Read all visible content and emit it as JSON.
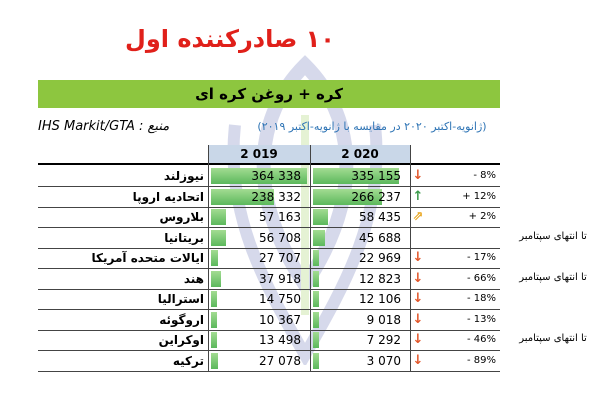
{
  "title": "۱۰ صادرکننده اول",
  "banner": "کره + روغن کره ای",
  "source": "IHS Markit/GTA : منبع",
  "subtitle": "(ژانویه-اکتبر ۲۰۲۰ در مقایسه با ژانویه-اکتبر ۲۰۱۹)",
  "headers": {
    "y2019": "2 019",
    "y2020": "2 020"
  },
  "colors": {
    "up": "#3a9a4a",
    "down": "#e2572b",
    "up_small": "#e8a318",
    "bar": "#5cb85c",
    "banner": "#8dc63f"
  },
  "rows": [
    {
      "country": "نیوزلند",
      "v2019": "364 338",
      "v2020": "335 155",
      "f2019": 1.0,
      "f2020": 0.92,
      "arrow": "down-arrow",
      "pct": "- 8%",
      "note": ""
    },
    {
      "country": "اتحادیه اروپا",
      "v2019": "238 332",
      "v2020": "266 237",
      "f2019": 0.654,
      "f2020": 0.731,
      "arrow": "up-arrow",
      "pct": "+ 12%",
      "note": ""
    },
    {
      "country": "بلاروس",
      "v2019": "57 163",
      "v2020": "58 435",
      "f2019": 0.157,
      "f2020": 0.16,
      "arrow": "up-right-arrow",
      "pct": "+ 2%",
      "note": ""
    },
    {
      "country": "بریتانیا",
      "v2019": "56 708",
      "v2020": "45 688",
      "f2019": 0.156,
      "f2020": 0.125,
      "arrow": "",
      "pct": "",
      "note": "تا انتهای سپتامبر"
    },
    {
      "country": "ایالات متحده آمریکا",
      "v2019": "27 707",
      "v2020": "22 969",
      "f2019": 0.076,
      "f2020": 0.063,
      "arrow": "down-arrow",
      "pct": "- 17%",
      "note": ""
    },
    {
      "country": "هند",
      "v2019": "37 918",
      "v2020": "12 823",
      "f2019": 0.104,
      "f2020": 0.035,
      "arrow": "down-arrow",
      "pct": "- 66%",
      "note": "تا انتهای سپتامبر"
    },
    {
      "country": "استرالیا",
      "v2019": "14 750",
      "v2020": "12 106",
      "f2019": 0.04,
      "f2020": 0.033,
      "arrow": "down-arrow",
      "pct": "- 18%",
      "note": ""
    },
    {
      "country": "اروگوئه",
      "v2019": "10 367",
      "v2020": "9 018",
      "f2019": 0.028,
      "f2020": 0.025,
      "arrow": "down-arrow",
      "pct": "- 13%",
      "note": ""
    },
    {
      "country": "اوکراین",
      "v2019": "13 498",
      "v2020": "7 292",
      "f2019": 0.037,
      "f2020": 0.02,
      "arrow": "down-arrow",
      "pct": "- 46%",
      "note": "تا انتهای سپتامبر"
    },
    {
      "country": "ترکیه",
      "v2019": "27 078",
      "v2020": "3 070",
      "f2019": 0.074,
      "f2020": 0.008,
      "arrow": "down-arrow",
      "pct": "- 89%",
      "note": ""
    }
  ]
}
